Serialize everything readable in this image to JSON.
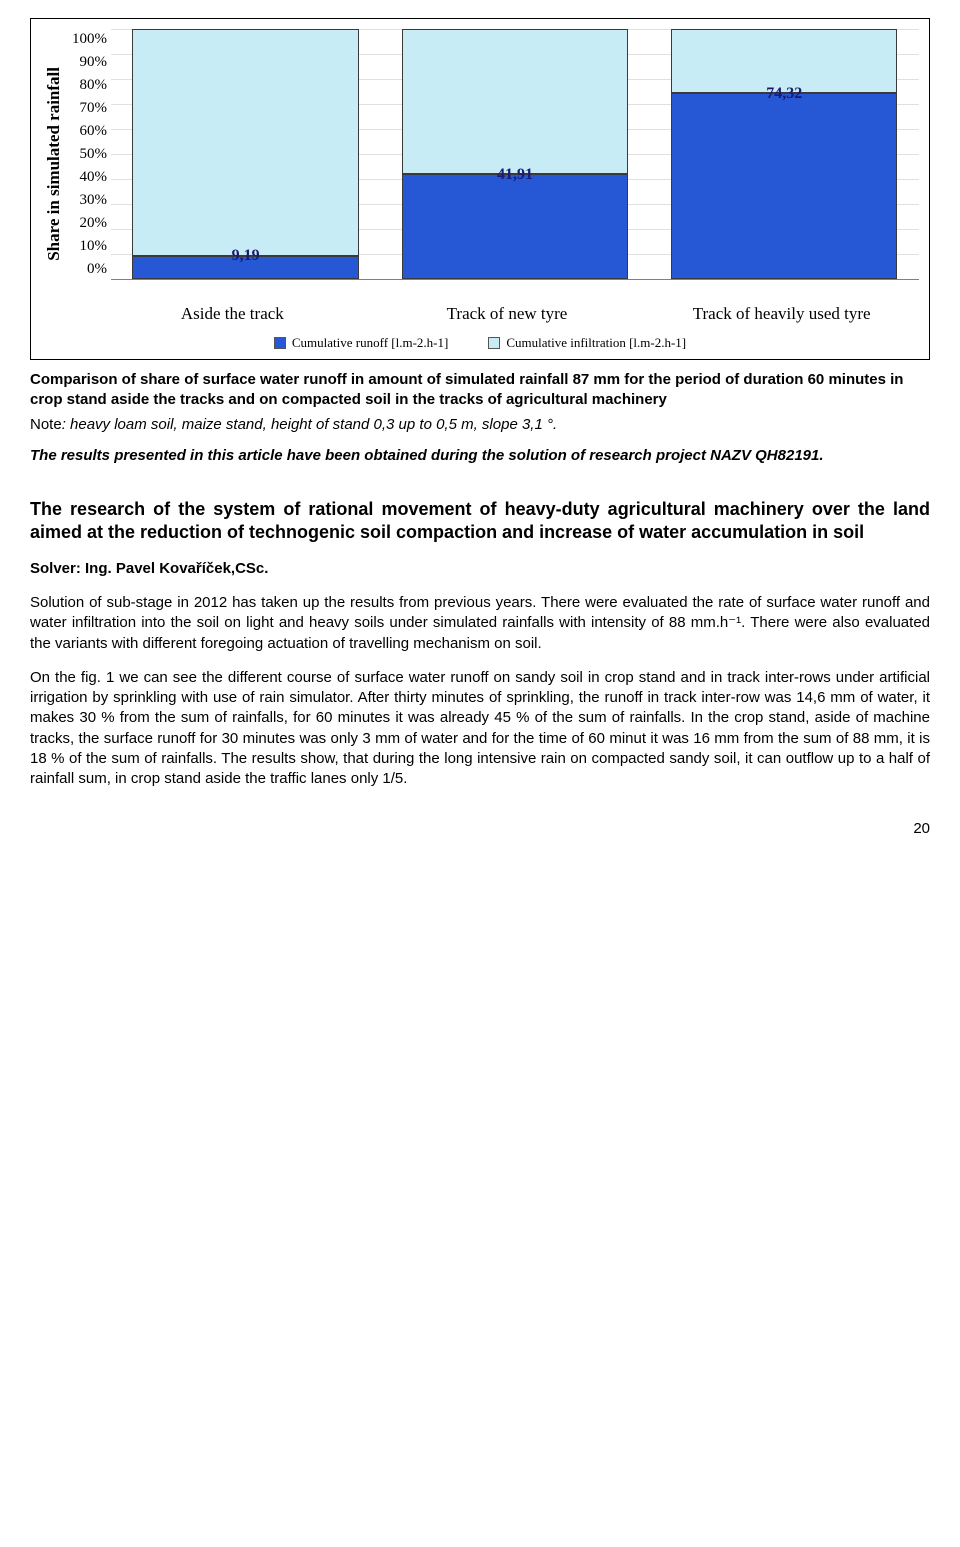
{
  "chart": {
    "type": "stacked-bar-100pct",
    "y_label": "Share in simulated rainfall",
    "y_ticks": [
      "100%",
      "90%",
      "80%",
      "70%",
      "60%",
      "50%",
      "40%",
      "30%",
      "20%",
      "10%",
      "0%"
    ],
    "grid_color": "#e0e0e0",
    "background_color": "#ffffff",
    "categories": [
      "Aside the track",
      "Track of new tyre",
      "Track of heavily used tyre"
    ],
    "series": [
      {
        "name": "Cumulative runoff [l.m-2.h-1]",
        "color": "#2657d4"
      },
      {
        "name": "Cumulative infiltration [l.m-2.h-1]",
        "color": "#c7ecf5"
      }
    ],
    "runoff_pct": [
      9.19,
      41.91,
      74.32
    ],
    "infiltration_pct": [
      90.81,
      58.09,
      25.68
    ],
    "bar_label_color": "#1b1972",
    "bar_label_fontsize": 16,
    "tick_font": "Times New Roman",
    "tick_fontsize": 15
  },
  "caption": "Comparison of share of surface water runoff in amount of simulated rainfall 87 mm for the period of duration 60 minutes in crop stand aside the tracks and on compacted soil in the tracks of agricultural machinery",
  "note_prefix": " Note",
  "note_body": ": heavy loam soil, maize stand, height of stand 0,3 up to 0,5 m, slope 3,1 °.",
  "acknowledgement": "The results presented in this article have been obtained during the solution of research project NAZV QH82191.",
  "section_title": "The research of the system of rational movement of heavy-duty agricultural machinery over the land aimed at the reduction of technogenic soil compaction and increase of water accumulation in soil",
  "solver": "Solver: Ing. Pavel Kovaříček,CSc.",
  "paragraphs": [
    "Solution of sub-stage in 2012 has taken up the results from previous years. There were evaluated the rate of surface water runoff and water infiltration into the soil on light and heavy soils under simulated rainfalls with intensity of 88 mm.h⁻¹.  There were also evaluated the variants with different foregoing actuation of travelling mechanism on soil.",
    "On the fig. 1 we can see the different course of surface water runoff on sandy soil in crop stand and in track inter-rows under artificial irrigation by sprinkling with use of rain simulator. After thirty minutes of sprinkling, the runoff in track inter-row  was 14,6 mm of water, it makes 30 % from the sum of rainfalls, for 60 minutes it was already 45 % of the sum of rainfalls. In the crop stand, aside of machine tracks, the surface runoff for 30 minutes was only 3 mm of water and for the time of 60 minut it was 16 mm from the sum of 88 mm, it is 18 %  of the sum of rainfalls. The results show, that during the long intensive rain on compacted sandy soil, it can outflow up to a half of rainfall sum, in crop stand aside the traffic lanes only 1/5."
  ],
  "page_number": "20"
}
